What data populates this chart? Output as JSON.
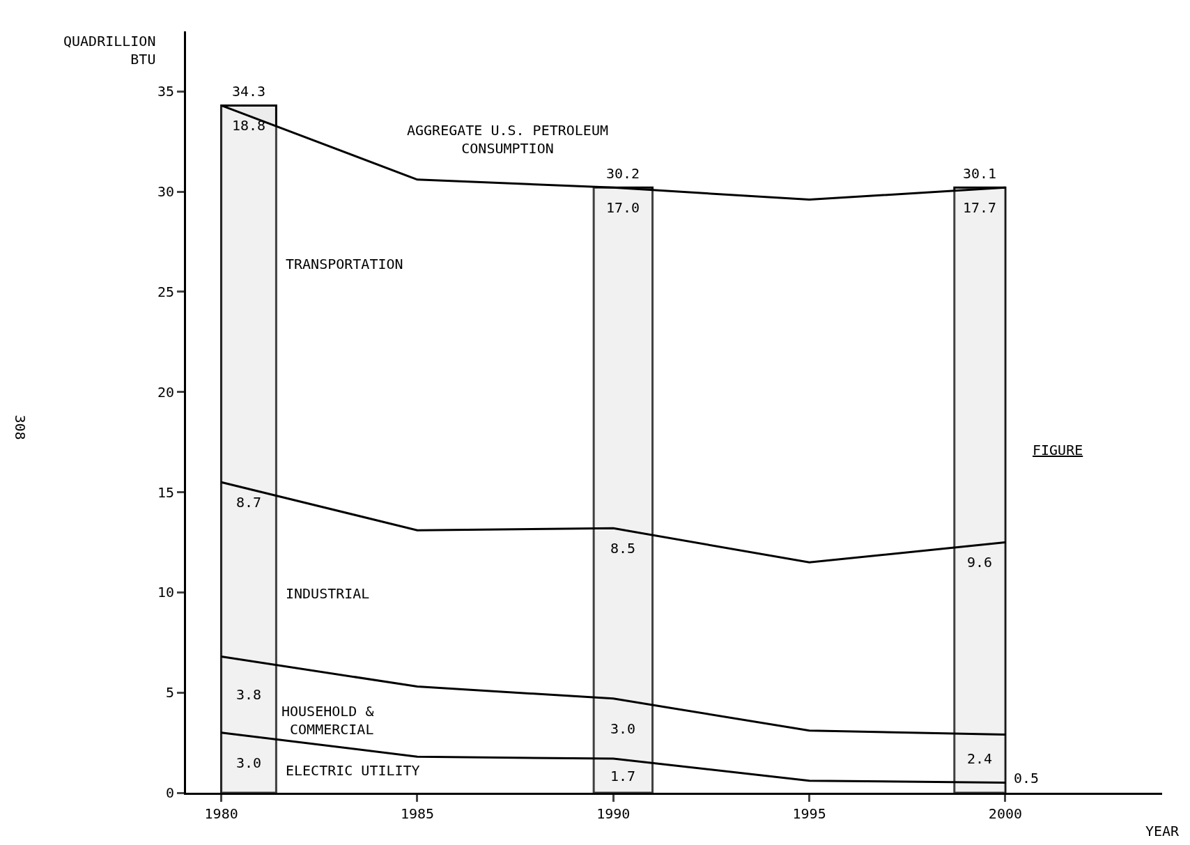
{
  "chart_data": {
    "type": "area",
    "stacked": true,
    "xlabel": "YEAR",
    "ylabel": "QUADRILLION\nBTU",
    "x": [
      1980,
      1985,
      1990,
      1995,
      2000
    ],
    "series": [
      {
        "name": "ELECTRIC UTILITY",
        "color": "#000000",
        "values": [
          3.0,
          1.8,
          1.7,
          0.6,
          0.5
        ],
        "value_labels": [
          "3.0",
          null,
          "1.7",
          null,
          "0.5"
        ]
      },
      {
        "name": "HOUSEHOLD &\nCOMMERCIAL",
        "color": "#000000",
        "values": [
          3.8,
          3.5,
          3.0,
          2.5,
          2.4
        ],
        "value_labels": [
          "3.8",
          null,
          "3.0",
          null,
          "2.4"
        ]
      },
      {
        "name": "INDUSTRIAL",
        "color": "#000000",
        "values": [
          8.7,
          7.8,
          8.5,
          8.4,
          9.6
        ],
        "value_labels": [
          "8.7",
          null,
          "8.5",
          null,
          "9.6"
        ]
      },
      {
        "name": "TRANSPORTATION",
        "color": "#000000",
        "values": [
          18.8,
          17.5,
          17.0,
          18.1,
          17.7
        ],
        "value_labels": [
          "18.8",
          null,
          "17.0",
          null,
          "17.7"
        ]
      }
    ],
    "totals": [
      "34.3",
      null,
      "30.2",
      null,
      "30.1"
    ],
    "bands": [
      {
        "axis": "x",
        "from": 1980,
        "to": 1981.4,
        "color": "#ececec"
      },
      {
        "axis": "x",
        "from": 1989.5,
        "to": 1991,
        "color": "#ececec"
      },
      {
        "axis": "x",
        "from": 1998.7,
        "to": 2000,
        "color": "#ececec"
      }
    ],
    "annotations": [
      "AGGREGATE U.S. PETROLEUM\nCONSUMPTION",
      "FIGURE",
      "308"
    ],
    "xlim": [
      1979.1,
      2004
    ],
    "xticks": [
      1980,
      1985,
      1990,
      1995,
      2000
    ],
    "ylim": [
      0,
      38
    ],
    "yticks": [
      0,
      5,
      10,
      15,
      20,
      25,
      30,
      35
    ],
    "grid": false,
    "legend": false,
    "marker": "none",
    "line_style": "solid"
  }
}
